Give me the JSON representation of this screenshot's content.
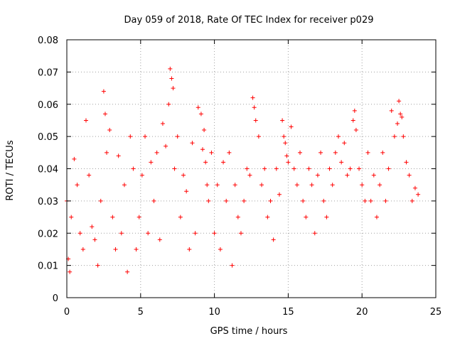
{
  "chart_data": {
    "type": "scatter",
    "title": "Day 059 of 2018, Rate Of TEC Index for receiver p029",
    "xlabel": "GPS time / hours",
    "ylabel": "ROTI / TECUs",
    "xlim": [
      0,
      25
    ],
    "ylim": [
      0,
      0.08
    ],
    "x_ticks": [
      "0",
      "5",
      "10",
      "15",
      "20",
      "25"
    ],
    "y_ticks": [
      "0",
      "0.01",
      "0.02",
      "0.03",
      "0.04",
      "0.05",
      "0.06",
      "0.07",
      "0.08"
    ],
    "grid": true,
    "marker": "+",
    "color": "#ff0000",
    "series": [
      {
        "x": [
          0.0,
          0.1,
          0.2,
          0.3,
          0.5,
          0.7,
          0.9,
          1.1,
          1.3,
          1.5,
          1.7,
          1.9,
          2.1,
          2.3,
          2.5,
          2.6,
          2.7,
          2.9,
          3.1,
          3.3,
          3.5,
          3.7,
          3.9,
          4.1,
          4.3,
          4.5,
          4.7,
          4.9,
          5.1,
          5.3,
          5.5,
          5.7,
          5.9,
          6.1,
          6.3,
          6.5,
          6.7,
          6.9,
          7.0,
          7.1,
          7.2,
          7.3,
          7.5,
          7.7,
          7.9,
          8.1,
          8.3,
          8.5,
          8.7,
          8.9,
          9.1,
          9.2,
          9.3,
          9.4,
          9.5,
          9.6,
          9.8,
          10.0,
          10.2,
          10.4,
          10.6,
          10.8,
          11.0,
          11.2,
          11.4,
          11.6,
          11.8,
          12.0,
          12.2,
          12.4,
          12.6,
          12.7,
          12.8,
          13.0,
          13.2,
          13.4,
          13.6,
          13.8,
          14.0,
          14.2,
          14.4,
          14.6,
          14.7,
          14.8,
          14.9,
          15.0,
          15.2,
          15.4,
          15.6,
          15.8,
          16.0,
          16.2,
          16.4,
          16.6,
          16.8,
          17.0,
          17.2,
          17.4,
          17.6,
          17.8,
          18.0,
          18.2,
          18.4,
          18.6,
          18.8,
          19.0,
          19.2,
          19.4,
          19.5,
          19.6,
          19.8,
          20.0,
          20.2,
          20.4,
          20.6,
          20.8,
          21.0,
          21.2,
          21.4,
          21.6,
          21.8,
          22.0,
          22.2,
          22.4,
          22.5,
          22.6,
          22.7,
          22.8,
          23.0,
          23.2,
          23.4,
          23.6,
          23.8
        ],
        "y": [
          0.03,
          0.012,
          0.008,
          0.025,
          0.043,
          0.035,
          0.02,
          0.015,
          0.055,
          0.038,
          0.022,
          0.018,
          0.01,
          0.03,
          0.064,
          0.057,
          0.045,
          0.052,
          0.025,
          0.015,
          0.044,
          0.02,
          0.035,
          0.008,
          0.05,
          0.04,
          0.015,
          0.025,
          0.038,
          0.05,
          0.02,
          0.042,
          0.03,
          0.045,
          0.018,
          0.054,
          0.047,
          0.06,
          0.071,
          0.068,
          0.065,
          0.04,
          0.05,
          0.025,
          0.038,
          0.033,
          0.015,
          0.048,
          0.02,
          0.059,
          0.057,
          0.046,
          0.052,
          0.042,
          0.035,
          0.03,
          0.045,
          0.02,
          0.035,
          0.015,
          0.042,
          0.03,
          0.045,
          0.01,
          0.035,
          0.025,
          0.02,
          0.03,
          0.04,
          0.038,
          0.062,
          0.059,
          0.055,
          0.05,
          0.035,
          0.04,
          0.025,
          0.03,
          0.018,
          0.04,
          0.032,
          0.055,
          0.05,
          0.048,
          0.044,
          0.042,
          0.053,
          0.04,
          0.035,
          0.045,
          0.03,
          0.025,
          0.04,
          0.035,
          0.02,
          0.038,
          0.045,
          0.03,
          0.025,
          0.04,
          0.035,
          0.045,
          0.05,
          0.042,
          0.048,
          0.038,
          0.04,
          0.055,
          0.058,
          0.052,
          0.04,
          0.035,
          0.03,
          0.045,
          0.03,
          0.038,
          0.025,
          0.035,
          0.045,
          0.03,
          0.04,
          0.058,
          0.05,
          0.054,
          0.061,
          0.057,
          0.056,
          0.05,
          0.042,
          0.038,
          0.03,
          0.034,
          0.032
        ]
      }
    ]
  }
}
